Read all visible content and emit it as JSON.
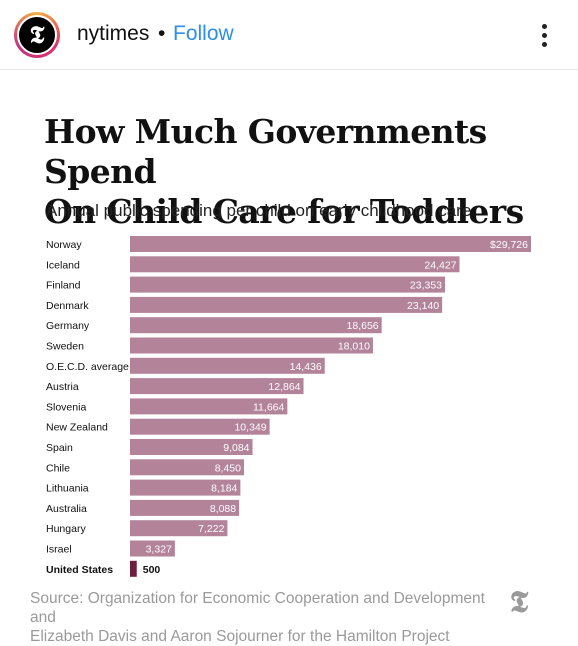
{
  "header": {
    "avatar_letter": "𝕿",
    "handle": "nytimes",
    "separator": "•",
    "follow_label": "Follow"
  },
  "post": {
    "title_line1": "How Much Governments Spend",
    "title_line2": "On Child Care for Toddlers",
    "subtitle": "Annual public spending per child on early childhood care",
    "source_line1": "Source: Organization for Economic Cooperation and Development and",
    "source_line2": "Elizabeth Davis and Aaron Sojourner for the Hamilton Project",
    "logo_letter": "𝕿"
  },
  "colors": {
    "bar": "#b3839a",
    "highlight_bar": "#6b1f3d",
    "follow": "#2f8ee8"
  },
  "chart_data": {
    "type": "bar",
    "orientation": "horizontal",
    "categories": [
      "Norway",
      "Iceland",
      "Finland",
      "Denmark",
      "Germany",
      "Sweden",
      "O.E.C.D. average",
      "Austria",
      "Slovenia",
      "New Zealand",
      "Spain",
      "Chile",
      "Lithuania",
      "Australia",
      "Hungary",
      "Israel",
      "United States"
    ],
    "values": [
      29726,
      24427,
      23353,
      23140,
      18656,
      18010,
      14436,
      12864,
      11664,
      10349,
      9084,
      8450,
      8184,
      8088,
      7222,
      3327,
      500
    ],
    "value_labels": [
      "$29,726",
      "24,427",
      "23,353",
      "23,140",
      "18,656",
      "18,010",
      "14,436",
      "12,864",
      "11,664",
      "10,349",
      "9,084",
      "8,450",
      "8,184",
      "8,088",
      "7,222",
      "3,327",
      "500"
    ],
    "highlight": "United States",
    "title": "How Much Governments Spend On Child Care for Toddlers",
    "subtitle": "Annual public spending per child on early childhood care",
    "xlabel": "",
    "ylabel": "",
    "xlim": [
      0,
      29726
    ],
    "grid": false
  }
}
